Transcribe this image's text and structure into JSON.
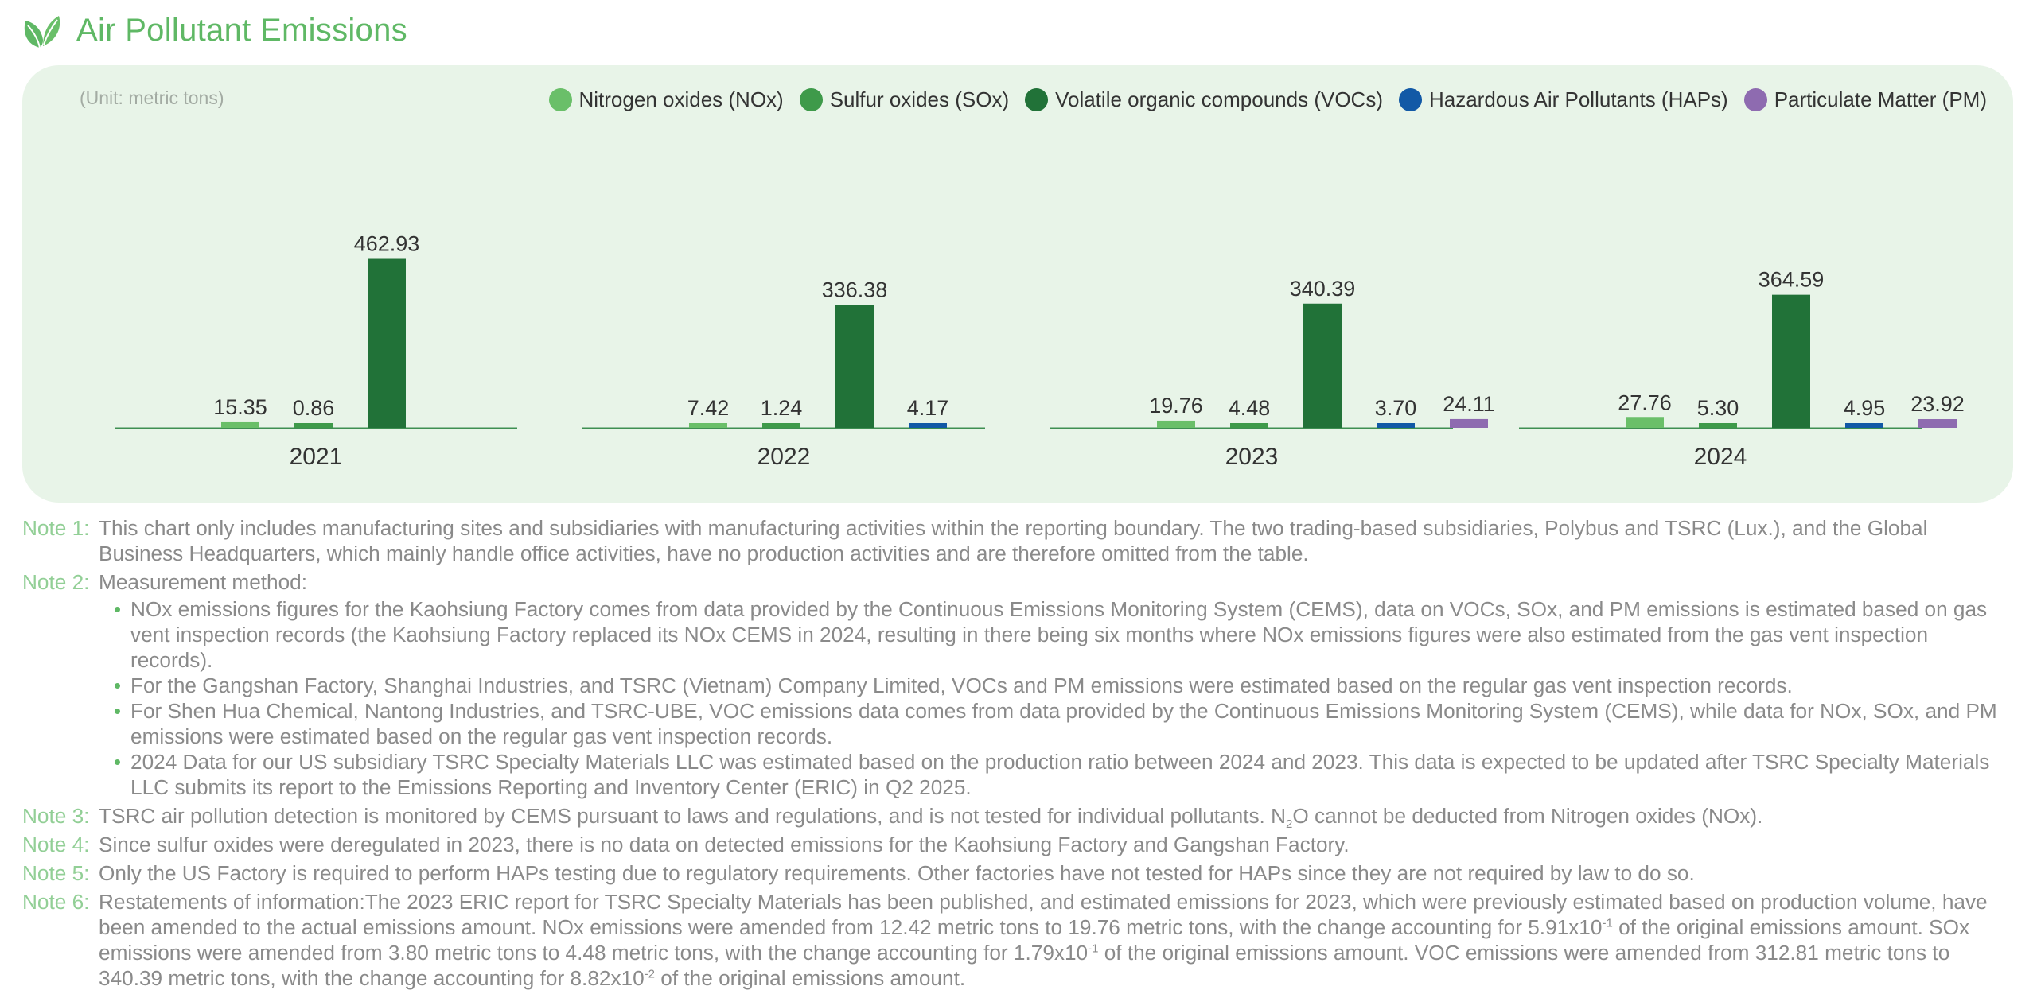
{
  "header": {
    "title": "Air Pollutant Emissions",
    "icon": "leaf-icon"
  },
  "chart_data": {
    "type": "bar",
    "unit_label": "(Unit: metric tons)",
    "categories": [
      "2021",
      "2022",
      "2023",
      "2024"
    ],
    "series": [
      {
        "name": "Nitrogen oxides (NOx)",
        "color": "#6abf69",
        "values": [
          15.35,
          7.42,
          19.76,
          27.76
        ],
        "labels": [
          "15.35",
          "7.42",
          "19.76",
          "27.76"
        ]
      },
      {
        "name": "Sulfur oxides (SOx)",
        "color": "#3e9a4a",
        "values": [
          0.86,
          1.24,
          4.48,
          5.3
        ],
        "labels": [
          "0.86",
          "1.24",
          "4.48",
          "5.30"
        ]
      },
      {
        "name": "Volatile organic compounds (VOCs)",
        "color": "#217238",
        "values": [
          462.93,
          336.38,
          340.39,
          364.59
        ],
        "labels": [
          "462.93",
          "336.38",
          "340.39",
          "364.59"
        ]
      },
      {
        "name": "Hazardous Air Pollutants (HAPs)",
        "color": "#1259a6",
        "values": [
          null,
          4.17,
          3.7,
          4.95
        ],
        "labels": [
          "",
          "4.17",
          "3.70",
          "4.95"
        ]
      },
      {
        "name": "Particulate Matter (PM)",
        "color": "#8e6bb0",
        "values": [
          null,
          null,
          24.11,
          23.92
        ],
        "labels": [
          "",
          "",
          "24.11",
          "23.92"
        ]
      }
    ],
    "legend_position": "top-right",
    "grid": false
  },
  "notes": {
    "note1": {
      "label": "Note 1:",
      "text": "This chart only includes manufacturing sites and subsidiaries with manufacturing activities within the reporting boundary. The two trading-based subsidiaries, Polybus and TSRC (Lux.), and the Global Business Headquarters, which mainly handle office activities, have no production activities and are therefore omitted from the table."
    },
    "note2": {
      "label": "Note 2:",
      "text": "Measurement method:",
      "bullets": [
        "NOx emissions figures for the Kaohsiung Factory comes from data provided by the Continuous Emissions Monitoring System (CEMS), data on VOCs, SOx, and PM emissions is estimated based on gas vent inspection records (the Kaohsiung Factory replaced its NOx CEMS in 2024, resulting in there being six months where NOx emissions figures were also estimated from the gas vent inspection records).",
        "For the Gangshan Factory, Shanghai Industries, and TSRC (Vietnam) Company Limited, VOCs and PM emissions were estimated based on the regular gas vent inspection records.",
        "For Shen Hua Chemical, Nantong Industries, and TSRC-UBE, VOC emissions data comes from data provided by the Continuous Emissions Monitoring System (CEMS), while data for NOx, SOx, and PM emissions were estimated based on the regular gas vent inspection records.",
        "2024 Data for our US subsidiary TSRC Specialty Materials LLC was estimated based on the production ratio between 2024 and 2023. This data is expected to be updated after TSRC Specialty Materials LLC submits its report to the Emissions Reporting and Inventory Center (ERIC) in Q2 2025."
      ]
    },
    "note3": {
      "label": "Note 3:",
      "text_a": "TSRC air pollution detection is monitored by CEMS pursuant to laws and regulations, and is not tested for individual pollutants. N",
      "sub": "2",
      "text_b": "O cannot be deducted from Nitrogen oxides (NOx)."
    },
    "note4": {
      "label": "Note 4:",
      "text": "Since sulfur oxides were deregulated in 2023, there is no data on detected emissions for the Kaohsiung Factory and Gangshan Factory."
    },
    "note5": {
      "label": "Note 5:",
      "text": "Only the US Factory is required to perform HAPs testing due to regulatory requirements. Other factories have not tested for HAPs since they are not required by law to do so."
    },
    "note6": {
      "label": "Note 6:",
      "p1": "Restatements of information:The 2023 ERIC report for TSRC Specialty Materials has been published, and estimated emissions for 2023, which were previously estimated based on production volume, have been amended to the actual emissions amount. NOx emissions were amended from 12.42 metric tons to 19.76 metric tons, with the change accounting for 5.91x10",
      "sup1": "-1",
      "p2": " of the original emissions amount. SOx emissions were amended from 3.80 metric tons to 4.48 metric tons, with the change accounting for 1.79x10",
      "sup2": "-1",
      "p3": " of the original emissions amount. VOC emissions were amended from 312.81 metric tons to 340.39 metric tons, with the change accounting for 8.82x10",
      "sup3": "-2",
      "p4": " of the original emissions amount."
    }
  }
}
